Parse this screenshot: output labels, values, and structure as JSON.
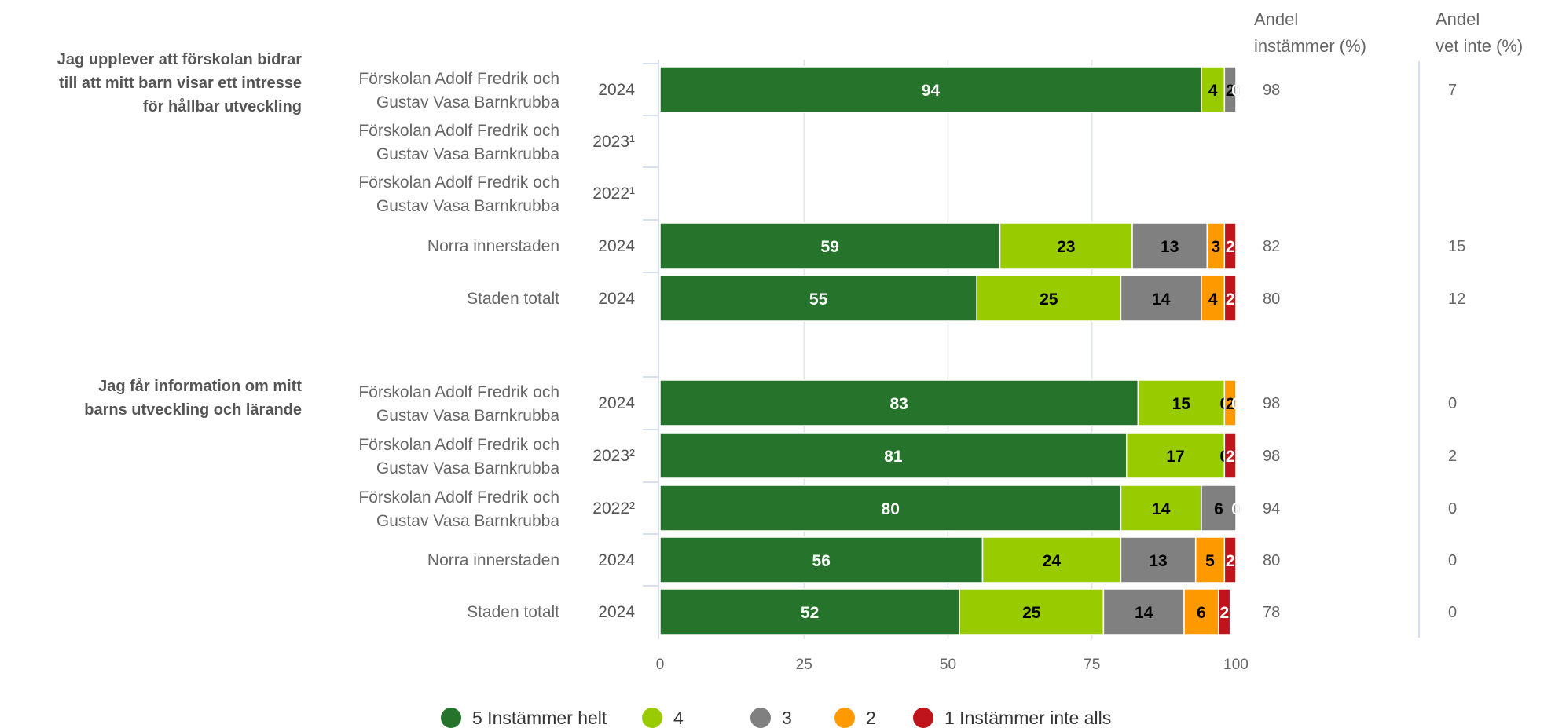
{
  "chart_data": {
    "type": "bar",
    "orientation": "horizontal",
    "stacked": true,
    "xlim": [
      0,
      100
    ],
    "x_ticks": [
      "0",
      "25",
      "50",
      "75",
      "100"
    ],
    "grid": true,
    "legend_position": "bottom",
    "column_headers": {
      "agree": [
        "Andel",
        "instämmer (%)"
      ],
      "dont_know": [
        "Andel",
        "vet inte (%)"
      ]
    },
    "series": [
      {
        "name": "5 Instämmer helt",
        "color": "#26732c",
        "label_color": "#ffffff"
      },
      {
        "name": "4",
        "color": "#99cc00",
        "label_color": "#000000"
      },
      {
        "name": "3",
        "color": "#808080",
        "label_color": "#000000"
      },
      {
        "name": "2",
        "color": "#ff9900",
        "label_color": "#000000"
      },
      {
        "name": "1 Instämmer inte alls",
        "color": "#c0141c",
        "label_color": "#ffffff"
      }
    ],
    "groups": [
      {
        "question": [
          "Jag upplever att förskolan bidrar",
          "till att mitt barn visar ett intresse",
          "för hållbar utveckling"
        ],
        "rows": [
          {
            "unit": [
              "Förskolan Adolf Fredrik och",
              "Gustav Vasa Barnkrubba"
            ],
            "year": "2024",
            "values": [
              94,
              4,
              2,
              0,
              0
            ],
            "agree": "98",
            "dont_know": "7"
          },
          {
            "unit": [
              "Förskolan Adolf Fredrik och",
              "Gustav Vasa Barnkrubba"
            ],
            "year": "2023¹",
            "values": null,
            "agree": "",
            "dont_know": ""
          },
          {
            "unit": [
              "Förskolan Adolf Fredrik och",
              "Gustav Vasa Barnkrubba"
            ],
            "year": "2022¹",
            "values": null,
            "agree": "",
            "dont_know": ""
          },
          {
            "unit": [
              "Norra innerstaden"
            ],
            "year": "2024",
            "values": [
              59,
              23,
              13,
              3,
              2
            ],
            "agree": "82",
            "dont_know": "15"
          },
          {
            "unit": [
              "Staden totalt"
            ],
            "year": "2024",
            "values": [
              55,
              25,
              14,
              4,
              2
            ],
            "agree": "80",
            "dont_know": "12"
          }
        ]
      },
      {
        "question": [
          "Jag får information om mitt",
          "barns utveckling och lärande"
        ],
        "rows": [
          {
            "unit": [
              "Förskolan Adolf Fredrik och",
              "Gustav Vasa Barnkrubba"
            ],
            "year": "2024",
            "values": [
              83,
              15,
              0,
              2,
              0
            ],
            "agree": "98",
            "dont_know": "0"
          },
          {
            "unit": [
              "Förskolan Adolf Fredrik och",
              "Gustav Vasa Barnkrubba"
            ],
            "year": "2023²",
            "values": [
              81,
              17,
              0,
              0,
              2
            ],
            "agree": "98",
            "dont_know": "2"
          },
          {
            "unit": [
              "Förskolan Adolf Fredrik och",
              "Gustav Vasa Barnkrubba"
            ],
            "year": "2022²",
            "values": [
              80,
              14,
              6,
              0,
              0
            ],
            "agree": "94",
            "dont_know": "0"
          },
          {
            "unit": [
              "Norra innerstaden"
            ],
            "year": "2024",
            "values": [
              56,
              24,
              13,
              5,
              2
            ],
            "agree": "80",
            "dont_know": "0"
          },
          {
            "unit": [
              "Staden totalt"
            ],
            "year": "2024",
            "values": [
              52,
              25,
              14,
              6,
              2
            ],
            "agree": "78",
            "dont_know": "0"
          }
        ]
      }
    ]
  }
}
